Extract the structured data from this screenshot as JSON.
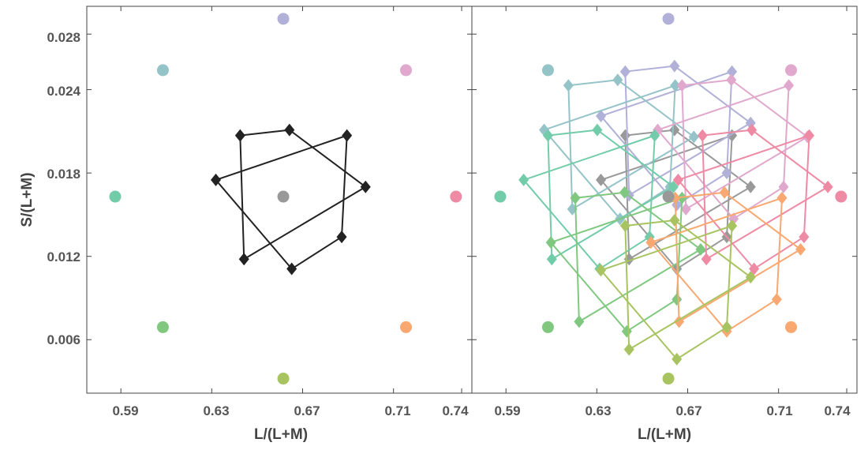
{
  "chart_data": {
    "type": "scatter",
    "xlabel": "L/(L+M)",
    "ylabel": "S/(L+M)",
    "xlim": [
      0.575,
      0.7445
    ],
    "ylim": [
      0.00215,
      0.03
    ],
    "xticks": [
      0.59,
      0.63,
      0.67,
      0.71,
      0.74
    ],
    "xtick_labels": [
      "0.59",
      "0.63",
      "0.67",
      "0.71",
      "0.74"
    ],
    "yticks": [
      0.006,
      0.012,
      0.018,
      0.024,
      0.028
    ],
    "ytick_labels": [
      "0.006",
      "0.012",
      "0.018",
      "0.024",
      "0.028"
    ],
    "grid": false,
    "colors": {
      "gray": "#999999",
      "black": "#222222",
      "purple": "#b0b0d8",
      "teal_blue": "#94c3c8",
      "pink": "#e0a8cc",
      "mint": "#72ccaa",
      "rose": "#ee8aa4",
      "green": "#80c880",
      "orange": "#f8a870",
      "olive": "#a8c460"
    },
    "reference_points": [
      {
        "color": "gray",
        "x": 0.6615,
        "y": 0.0163
      },
      {
        "color": "purple",
        "x": 0.6615,
        "y": 0.0291
      },
      {
        "color": "teal_blue",
        "x": 0.6085,
        "y": 0.0254
      },
      {
        "color": "pink",
        "x": 0.7155,
        "y": 0.0254
      },
      {
        "color": "mint",
        "x": 0.5875,
        "y": 0.0163
      },
      {
        "color": "rose",
        "x": 0.7375,
        "y": 0.0163
      },
      {
        "color": "green",
        "x": 0.6085,
        "y": 0.0069
      },
      {
        "color": "orange",
        "x": 0.7155,
        "y": 0.0069
      },
      {
        "color": "olive",
        "x": 0.6615,
        "y": 0.0032
      }
    ],
    "left_pattern": {
      "color": "black",
      "polygons": [
        [
          [
            0.6642,
            0.0211
          ],
          [
            0.6977,
            0.017
          ],
          [
            0.6442,
            0.0118
          ],
          [
            0.6425,
            0.0207
          ]
        ],
        [
          [
            0.6895,
            0.0207
          ],
          [
            0.6872,
            0.0134
          ],
          [
            0.6652,
            0.0111
          ],
          [
            0.6318,
            0.0175
          ]
        ]
      ]
    },
    "pattern_offsets": [
      {
        "color": "gray",
        "dx": 0.0,
        "dy": 0.0
      },
      {
        "color": "purple",
        "dx": 0.0,
        "dy": 0.0046
      },
      {
        "color": "teal_blue",
        "dx": -0.025,
        "dy": 0.0036
      },
      {
        "color": "pink",
        "dx": 0.025,
        "dy": 0.0036
      },
      {
        "color": "mint",
        "dx": -0.034,
        "dy": 0.0
      },
      {
        "color": "rose",
        "dx": 0.034,
        "dy": 0.0
      },
      {
        "color": "green",
        "dx": -0.022,
        "dy": -0.0045
      },
      {
        "color": "orange",
        "dx": 0.022,
        "dy": -0.0045
      },
      {
        "color": "olive",
        "dx": 0.0,
        "dy": -0.0065
      }
    ]
  }
}
